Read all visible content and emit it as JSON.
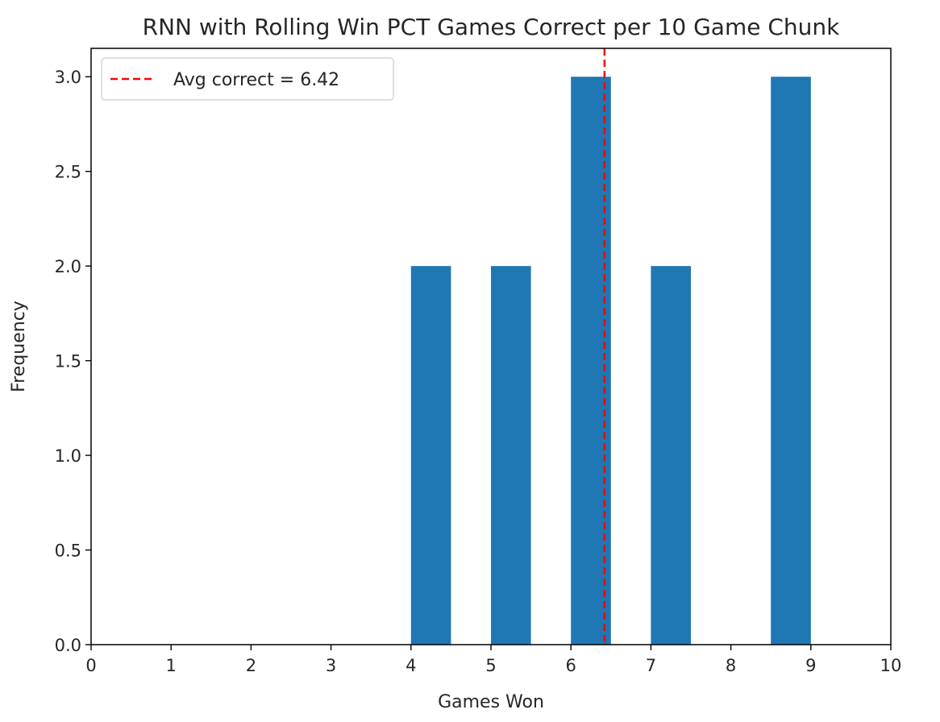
{
  "chart_data": {
    "type": "bar",
    "title": "RNN with Rolling Win PCT Games Correct per 10 Game Chunk",
    "xlabel": "Games Won",
    "ylabel": "Frequency",
    "xlim": [
      0,
      10
    ],
    "ylim": [
      0,
      3.15
    ],
    "xticks": [
      0,
      1,
      2,
      3,
      4,
      5,
      6,
      7,
      8,
      9,
      10
    ],
    "xtick_labels": [
      "0",
      "1",
      "2",
      "3",
      "4",
      "5",
      "6",
      "7",
      "8",
      "9",
      "10"
    ],
    "yticks": [
      0,
      0.5,
      1,
      1.5,
      2,
      2.5,
      3
    ],
    "ytick_labels": [
      "0.0",
      "0.5",
      "1.0",
      "1.5",
      "2.0",
      "2.5",
      "3.0"
    ],
    "bars": [
      {
        "x_start": 4.0,
        "x_end": 4.5,
        "value": 2
      },
      {
        "x_start": 5.0,
        "x_end": 5.5,
        "value": 2
      },
      {
        "x_start": 6.0,
        "x_end": 6.5,
        "value": 3
      },
      {
        "x_start": 7.0,
        "x_end": 7.5,
        "value": 2
      },
      {
        "x_start": 8.5,
        "x_end": 9.0,
        "value": 3
      }
    ],
    "bar_color": "#1f77b4",
    "reference_line": {
      "x": 6.42,
      "style": "dashed",
      "color": "#ff0000",
      "label": "Avg correct = 6.42"
    },
    "legend": {
      "position": "top-left",
      "entries": [
        "Avg correct = 6.42"
      ]
    },
    "grid": false
  }
}
